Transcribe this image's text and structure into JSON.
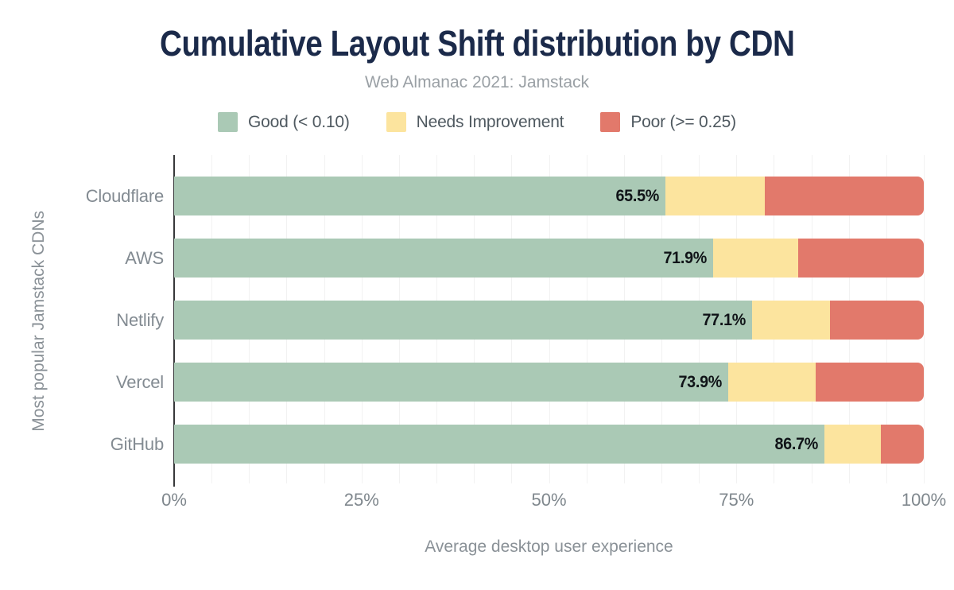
{
  "chart_data": {
    "type": "bar",
    "orientation": "horizontal",
    "stacked": true,
    "title": "Cumulative Layout Shift distribution by CDN",
    "subtitle": "Web Almanac 2021: Jamstack",
    "xlabel": "Average desktop user experience",
    "ylabel": "Most popular Jamstack CDNs",
    "legend_position": "top",
    "grid": true,
    "grid_step": 5,
    "xlim": [
      0,
      100
    ],
    "x_ticks": [
      "0%",
      "25%",
      "50%",
      "75%",
      "100%"
    ],
    "x_tick_values": [
      0,
      25,
      50,
      75,
      100
    ],
    "categories": [
      "Cloudflare",
      "AWS",
      "Netlify",
      "Vercel",
      "GitHub"
    ],
    "series": [
      {
        "name": "Good (< 0.10)",
        "key": "good",
        "color": "#aac9b5",
        "values": [
          65.5,
          71.9,
          77.1,
          73.9,
          86.7
        ]
      },
      {
        "name": "Needs Improvement",
        "key": "needs-improvement",
        "color": "#fce49e",
        "values": [
          13.3,
          11.3,
          10.4,
          11.7,
          7.6
        ]
      },
      {
        "name": "Poor (>= 0.25)",
        "key": "poor",
        "color": "#e2796b",
        "values": [
          21.2,
          16.8,
          12.5,
          14.4,
          5.7
        ]
      }
    ],
    "bar_labels": [
      "65.5%",
      "71.9%",
      "77.1%",
      "73.9%",
      "86.7%"
    ],
    "colors": {
      "title": "#1b2a4a",
      "subtitle": "#9aa0a5",
      "axis_text": "#838b92",
      "bar_label": "#101418",
      "axis_line": "#37383a"
    }
  }
}
